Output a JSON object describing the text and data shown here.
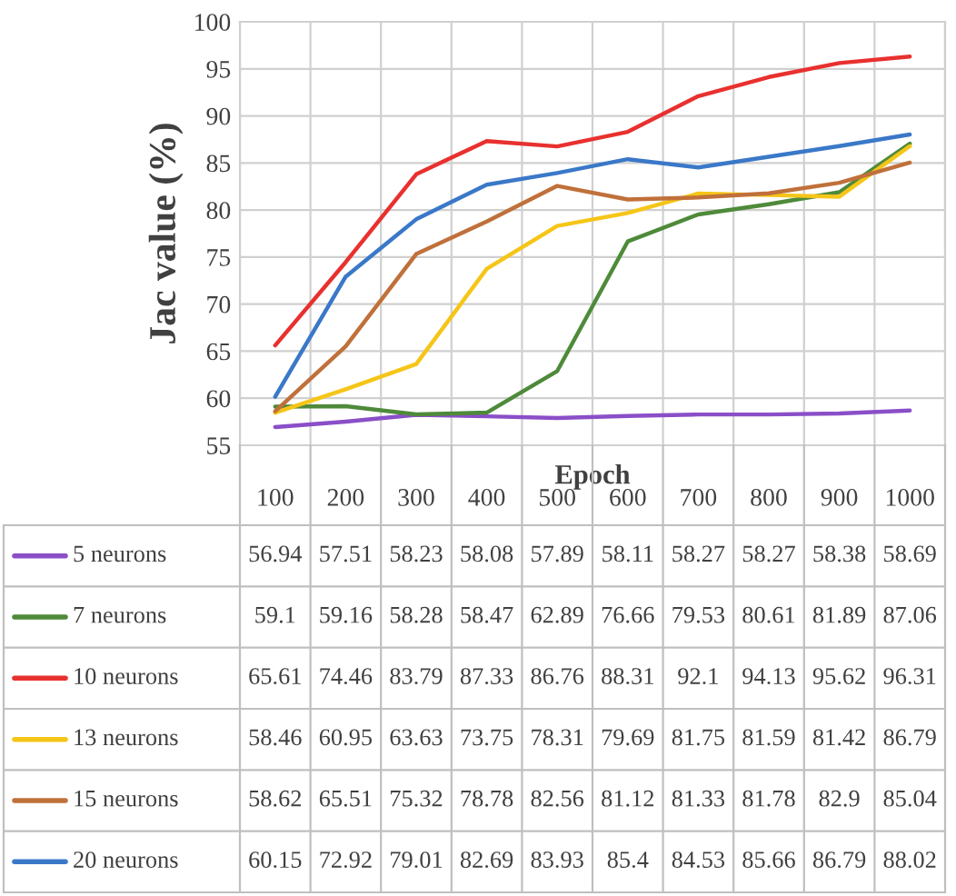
{
  "chart_data": {
    "type": "line",
    "xlabel": "Epoch",
    "ylabel": "Jac value (%)",
    "categories": [
      "100",
      "200",
      "300",
      "400",
      "500",
      "600",
      "700",
      "800",
      "900",
      "1000"
    ],
    "series": [
      {
        "name": "5 neurons",
        "color": "#8a4fc8",
        "values": [
          56.94,
          57.51,
          58.23,
          58.08,
          57.89,
          58.11,
          58.27,
          58.27,
          58.38,
          58.69
        ]
      },
      {
        "name": "7 neurons",
        "color": "#4e8a3a",
        "values": [
          59.1,
          59.16,
          58.28,
          58.47,
          62.89,
          76.66,
          79.53,
          80.61,
          81.89,
          87.06
        ]
      },
      {
        "name": "10 neurons",
        "color": "#e8312f",
        "values": [
          65.61,
          74.46,
          83.79,
          87.33,
          86.76,
          88.31,
          92.1,
          94.13,
          95.62,
          96.31
        ]
      },
      {
        "name": "13 neurons",
        "color": "#f5c518",
        "values": [
          58.46,
          60.95,
          63.63,
          73.75,
          78.31,
          79.69,
          81.75,
          81.59,
          81.42,
          86.79
        ]
      },
      {
        "name": "15 neurons",
        "color": "#c0703a",
        "values": [
          58.62,
          65.51,
          75.32,
          78.78,
          82.56,
          81.12,
          81.33,
          81.78,
          82.9,
          85.04
        ]
      },
      {
        "name": "20 neurons",
        "color": "#3a78c8",
        "values": [
          60.15,
          72.92,
          79.01,
          82.69,
          83.93,
          85.4,
          84.53,
          85.66,
          86.79,
          88.02
        ]
      }
    ],
    "ylim": [
      55,
      100
    ],
    "yticks": [
      55,
      60,
      65,
      70,
      75,
      80,
      85,
      90,
      95,
      100
    ],
    "grid": true,
    "data_labels": true,
    "legend": "bottom",
    "marker": "none",
    "line_style": "solid"
  }
}
